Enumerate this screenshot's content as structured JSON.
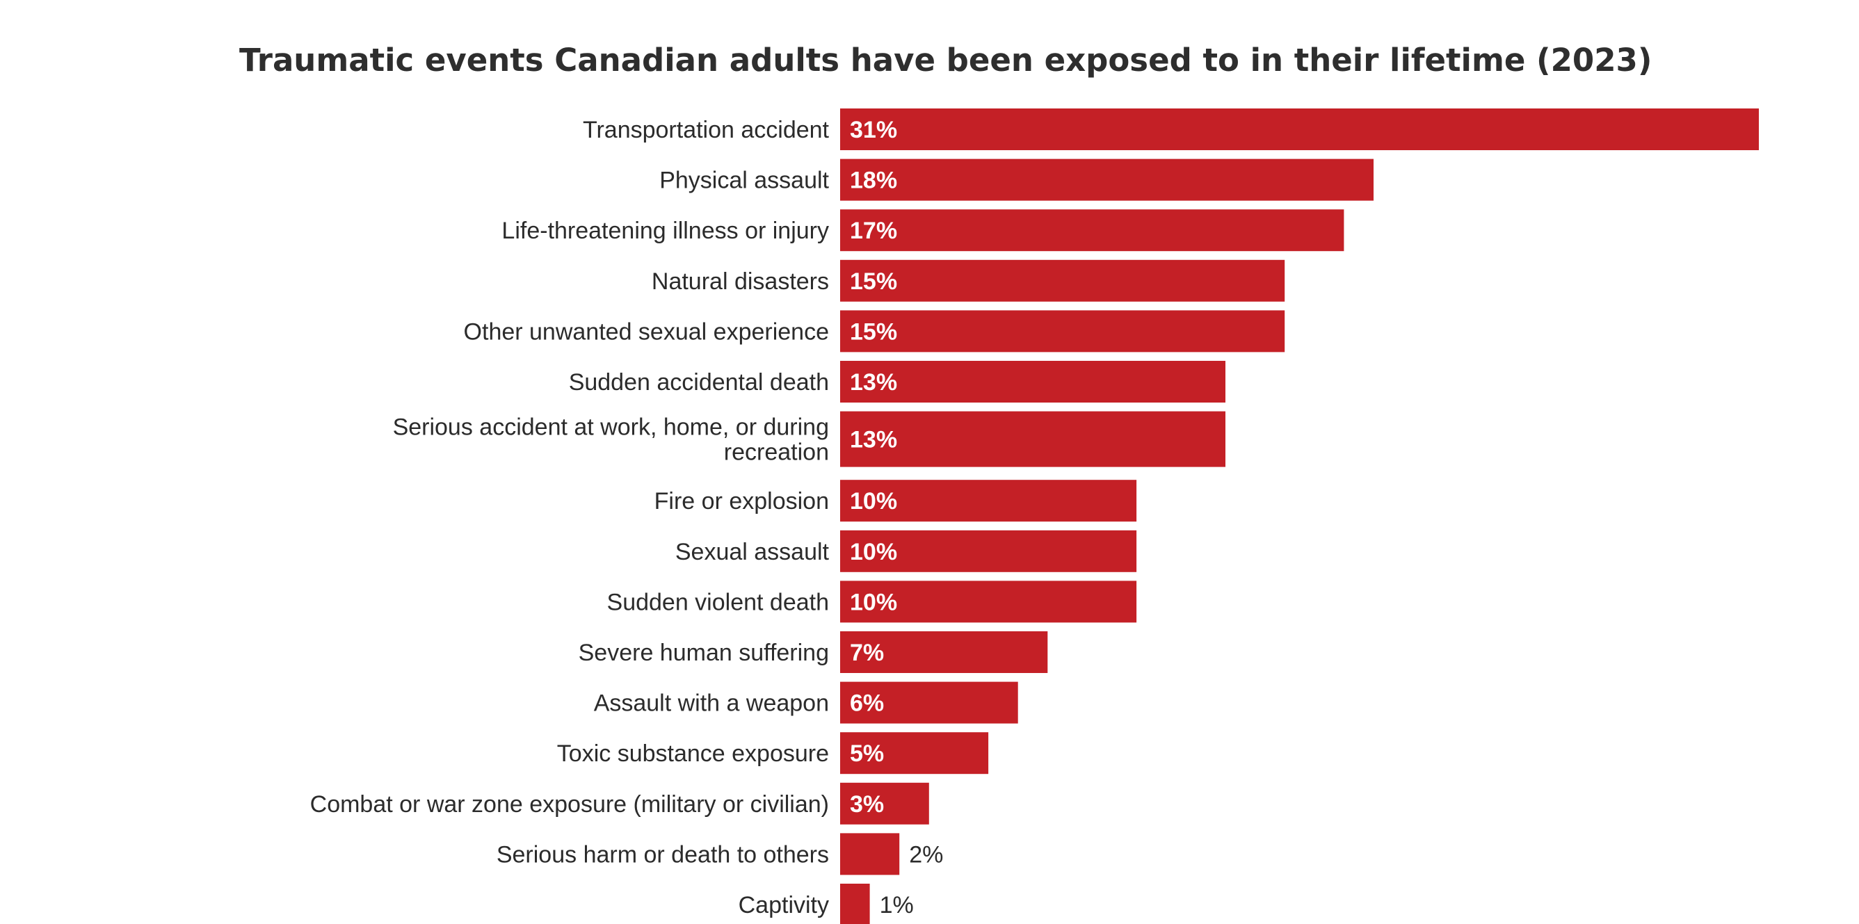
{
  "colors": {
    "bar": "#c42026",
    "label_inside": "#ffffff",
    "label_outside": "#2b2b2b",
    "title": "#2e2e2e"
  },
  "chart_data": {
    "type": "bar",
    "orientation": "horizontal",
    "title": "Traumatic events Canadian adults have been exposed to in their lifetime (2023)",
    "xlabel": "",
    "ylabel": "",
    "value_suffix": "%",
    "xlim": [
      0,
      31
    ],
    "grid": false,
    "legend": "none",
    "categories": [
      "Transportation accident",
      "Physical assault",
      "Life-threatening illness or injury",
      "Natural disasters",
      "Other unwanted sexual experience",
      "Sudden accidental death",
      "Serious accident at work, home, or during recreation",
      "Fire or explosion",
      "Sexual assault",
      "Sudden violent death",
      "Severe human suffering",
      "Assault with a weapon",
      "Toxic substance exposure",
      "Combat or war zone exposure (military or civilian)",
      "Serious harm or death to others",
      "Captivity"
    ],
    "values": [
      31,
      18,
      17,
      15,
      15,
      13,
      13,
      10,
      10,
      10,
      7,
      6,
      5,
      3,
      2,
      1
    ]
  }
}
